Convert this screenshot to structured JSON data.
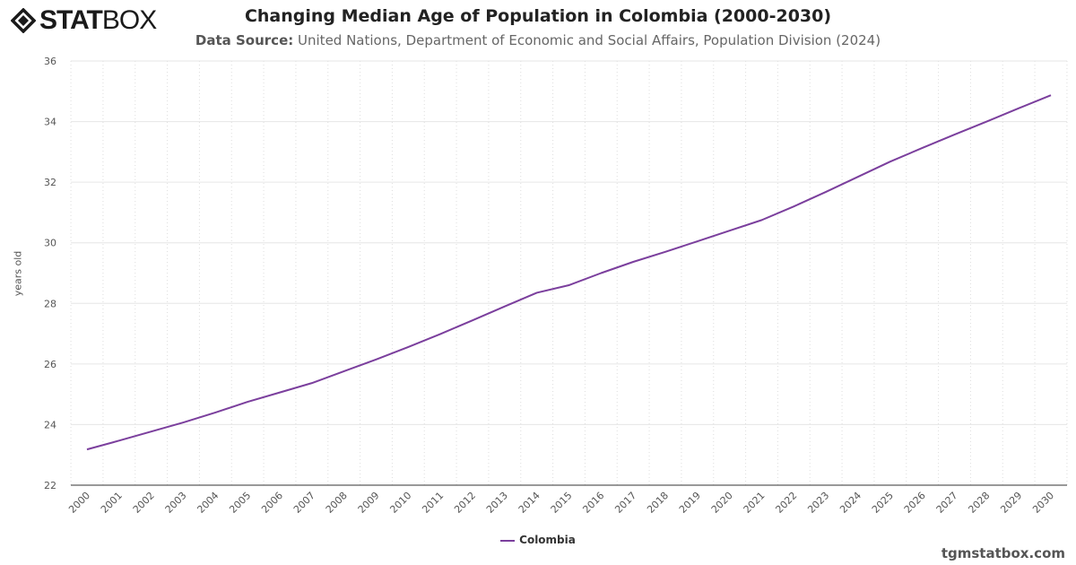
{
  "logo": {
    "text_bold": "STAT",
    "text_light": "BOX"
  },
  "chart_data": {
    "type": "line",
    "title": "Changing Median Age of Population in Colombia (2000-2030)",
    "subtitle_label": "Data Source:",
    "subtitle": "United Nations, Department of Economic and Social Affairs, Population Division (2024)",
    "xlabel": "",
    "ylabel": "years old",
    "ylim": [
      22,
      36
    ],
    "yticks": [
      22,
      24,
      26,
      28,
      30,
      32,
      34,
      36
    ],
    "grid": true,
    "legend_placement": "bottom",
    "categories": [
      "2000",
      "2001",
      "2002",
      "2003",
      "2004",
      "2005",
      "2006",
      "2007",
      "2008",
      "2009",
      "2010",
      "2011",
      "2012",
      "2013",
      "2014",
      "2015",
      "2016",
      "2017",
      "2018",
      "2019",
      "2020",
      "2021",
      "2022",
      "2023",
      "2024",
      "2025",
      "2026",
      "2027",
      "2028",
      "2029",
      "2030"
    ],
    "series": [
      {
        "name": "Colombia",
        "color": "#7b3f9d",
        "values": [
          23.18,
          23.47,
          23.77,
          24.07,
          24.4,
          24.75,
          25.06,
          25.37,
          25.76,
          26.15,
          26.56,
          26.99,
          27.44,
          27.9,
          28.35,
          28.6,
          29.0,
          29.37,
          29.7,
          30.05,
          30.4,
          30.75,
          31.2,
          31.68,
          32.18,
          32.68,
          33.13,
          33.57,
          34.0,
          34.44,
          34.87
        ]
      }
    ]
  },
  "credit": "tgmstatbox.com"
}
